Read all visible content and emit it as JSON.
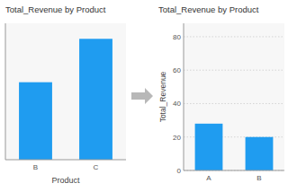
{
  "chart_data": [
    {
      "type": "bar",
      "title": "Total_Revenue by Product",
      "xlabel": "Product",
      "categories": [
        "B",
        "C"
      ],
      "values": [
        50,
        78
      ],
      "color": "#1f9cf0",
      "ylim": [
        0,
        88
      ],
      "yticks": [],
      "tick_labels": "x"
    },
    {
      "type": "bar",
      "title": "Total_Revenue by Product",
      "ylabel": "Total_Revenue",
      "categories": [
        "A",
        "B"
      ],
      "values": [
        28,
        20
      ],
      "color": "#1f9cf0",
      "ylim": [
        0,
        88
      ],
      "yticks": [
        0,
        20,
        40,
        60,
        80
      ],
      "grid": true
    }
  ]
}
